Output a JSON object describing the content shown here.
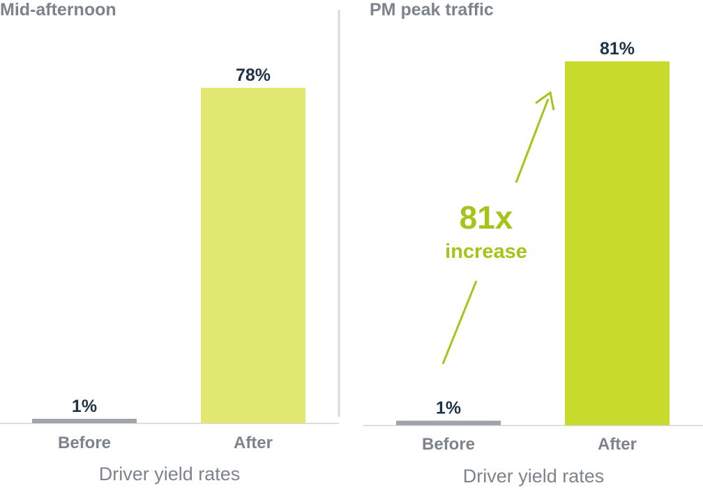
{
  "chart_data": [
    {
      "type": "bar",
      "title": "Mid-afternoon",
      "xlabel": "Driver yield rates",
      "categories": [
        "Before",
        "After"
      ],
      "values": [
        1,
        78
      ],
      "value_labels": [
        "1%",
        "78%"
      ],
      "unit": "%",
      "ylim": [
        0,
        100
      ],
      "grid": false,
      "bar_colors": [
        "#9fa3ab",
        "#e0e872"
      ]
    },
    {
      "type": "bar",
      "title": "PM peak traffic",
      "xlabel": "Driver yield rates",
      "categories": [
        "Before",
        "After"
      ],
      "values": [
        1,
        81
      ],
      "value_labels": [
        "1%",
        "81%"
      ],
      "unit": "%",
      "ylim": [
        0,
        100
      ],
      "grid": false,
      "bar_colors": [
        "#9fa3ab",
        "#c8da2b"
      ],
      "annotation": {
        "value": "81x",
        "text": "increase",
        "color": "#a8c21a"
      }
    }
  ],
  "colors": {
    "title": "#7d838c",
    "value_label": "#1f3346",
    "category_label": "#7d838c",
    "axis_label": "#7d838c",
    "baseline": "#cfd2d6",
    "divider": "#d8dade"
  }
}
